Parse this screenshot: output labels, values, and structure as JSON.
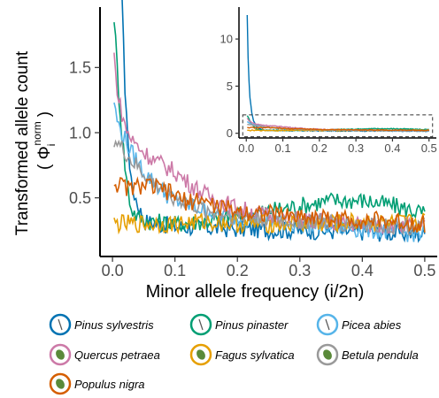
{
  "chart_data": {
    "type": "line",
    "xlabel": "Minor allele frequency (i/2n)",
    "ylabel_line1": "Transformed allele count",
    "ylabel_line2": "( Φ",
    "ylabel_sup": "norm",
    "ylabel_sub": "i",
    "ylabel_close": ")",
    "grid": false,
    "legend_position": "bottom",
    "main": {
      "xlim": [
        -0.02,
        0.52
      ],
      "ylim": [
        0.05,
        1.95
      ],
      "xticks": [
        0.0,
        0.1,
        0.2,
        0.3,
        0.4,
        0.5
      ],
      "xtick_labels": [
        "0.0",
        "0.1",
        "0.2",
        "0.3",
        "0.4",
        "0.5"
      ],
      "yticks": [
        0.5,
        1.0,
        1.5
      ],
      "ytick_labels": [
        "0.5",
        "1.0",
        "1.5"
      ]
    },
    "inset": {
      "xlim": [
        -0.02,
        0.52
      ],
      "ylim": [
        -0.5,
        13.2
      ],
      "xticks": [
        0.0,
        0.1,
        0.2,
        0.3,
        0.4,
        0.5
      ],
      "xtick_labels": [
        "0.0",
        "0.1",
        "0.2",
        "0.3",
        "0.4",
        "0.5"
      ],
      "yticks": [
        0,
        5,
        10
      ],
      "ytick_labels": [
        "0",
        "5",
        "10"
      ],
      "zoom_box": {
        "x": [
          0.0,
          0.5
        ],
        "y": [
          0.0,
          1.95
        ]
      }
    },
    "series": [
      {
        "name": "Pinus sylvestris",
        "color": "#0072B2",
        "icon": "pine-twig-icon",
        "points": [
          [
            0.0025,
            12.5
          ],
          [
            0.005,
            8.0
          ],
          [
            0.0075,
            5.5
          ],
          [
            0.01,
            3.8
          ],
          [
            0.015,
            2.2
          ],
          [
            0.02,
            1.3
          ],
          [
            0.03,
            0.6
          ],
          [
            0.05,
            0.32
          ],
          [
            0.1,
            0.28
          ],
          [
            0.2,
            0.26
          ],
          [
            0.3,
            0.25
          ],
          [
            0.4,
            0.24
          ],
          [
            0.5,
            0.22
          ]
        ]
      },
      {
        "name": "Pinus pinaster",
        "color": "#009E73",
        "icon": "pine-twig-icon",
        "points": [
          [
            0.0025,
            1.9
          ],
          [
            0.005,
            1.7
          ],
          [
            0.01,
            1.3
          ],
          [
            0.015,
            1.0
          ],
          [
            0.02,
            0.75
          ],
          [
            0.025,
            0.55
          ],
          [
            0.03,
            0.42
          ],
          [
            0.04,
            0.35
          ],
          [
            0.06,
            0.32
          ],
          [
            0.1,
            0.3
          ],
          [
            0.15,
            0.32
          ],
          [
            0.2,
            0.36
          ],
          [
            0.25,
            0.4
          ],
          [
            0.3,
            0.44
          ],
          [
            0.35,
            0.48
          ],
          [
            0.4,
            0.48
          ],
          [
            0.45,
            0.44
          ],
          [
            0.5,
            0.38
          ]
        ]
      },
      {
        "name": "Picea abies",
        "color": "#56B4E9",
        "icon": "spruce-twig-icon",
        "points": [
          [
            0.0025,
            1.25
          ],
          [
            0.005,
            1.15
          ],
          [
            0.01,
            1.05
          ],
          [
            0.02,
            0.95
          ],
          [
            0.03,
            0.85
          ],
          [
            0.05,
            0.7
          ],
          [
            0.08,
            0.55
          ],
          [
            0.1,
            0.48
          ],
          [
            0.15,
            0.4
          ],
          [
            0.2,
            0.35
          ],
          [
            0.3,
            0.3
          ],
          [
            0.4,
            0.26
          ],
          [
            0.5,
            0.22
          ]
        ]
      },
      {
        "name": "Quercus petraea",
        "color": "#CC79A7",
        "icon": "oak-leaf-icon",
        "points": [
          [
            0.0025,
            1.6
          ],
          [
            0.005,
            1.45
          ],
          [
            0.01,
            1.25
          ],
          [
            0.02,
            1.05
          ],
          [
            0.03,
            0.95
          ],
          [
            0.05,
            0.85
          ],
          [
            0.07,
            0.78
          ],
          [
            0.1,
            0.7
          ],
          [
            0.12,
            0.62
          ],
          [
            0.15,
            0.52
          ],
          [
            0.2,
            0.42
          ],
          [
            0.25,
            0.36
          ],
          [
            0.3,
            0.33
          ],
          [
            0.4,
            0.3
          ],
          [
            0.5,
            0.28
          ]
        ]
      },
      {
        "name": "Fagus sylvatica",
        "color": "#E69F00",
        "icon": "beech-leaf-icon",
        "points": [
          [
            0.0025,
            0.3
          ],
          [
            0.05,
            0.3
          ],
          [
            0.1,
            0.3
          ],
          [
            0.15,
            0.32
          ],
          [
            0.2,
            0.3
          ],
          [
            0.25,
            0.3
          ],
          [
            0.3,
            0.3
          ],
          [
            0.35,
            0.3
          ],
          [
            0.4,
            0.32
          ],
          [
            0.45,
            0.3
          ],
          [
            0.5,
            0.32
          ]
        ]
      },
      {
        "name": "Betula pendula",
        "color": "#999999",
        "icon": "birch-leaf-icon",
        "points": [
          [
            0.0025,
            0.95
          ],
          [
            0.01,
            0.9
          ],
          [
            0.02,
            0.85
          ],
          [
            0.03,
            0.78
          ],
          [
            0.05,
            0.68
          ],
          [
            0.07,
            0.6
          ],
          [
            0.1,
            0.5
          ],
          [
            0.15,
            0.4
          ],
          [
            0.2,
            0.36
          ],
          [
            0.3,
            0.32
          ],
          [
            0.4,
            0.3
          ],
          [
            0.5,
            0.28
          ]
        ]
      },
      {
        "name": "Populus nigra",
        "color": "#D55E00",
        "icon": "poplar-leaf-icon",
        "points": [
          [
            0.0025,
            0.62
          ],
          [
            0.01,
            0.6
          ],
          [
            0.03,
            0.57
          ],
          [
            0.05,
            0.6
          ],
          [
            0.08,
            0.56
          ],
          [
            0.1,
            0.52
          ],
          [
            0.12,
            0.46
          ],
          [
            0.14,
            0.5
          ],
          [
            0.16,
            0.44
          ],
          [
            0.2,
            0.4
          ],
          [
            0.25,
            0.38
          ],
          [
            0.3,
            0.36
          ],
          [
            0.35,
            0.34
          ],
          [
            0.4,
            0.33
          ],
          [
            0.45,
            0.32
          ],
          [
            0.5,
            0.3
          ]
        ]
      }
    ]
  }
}
